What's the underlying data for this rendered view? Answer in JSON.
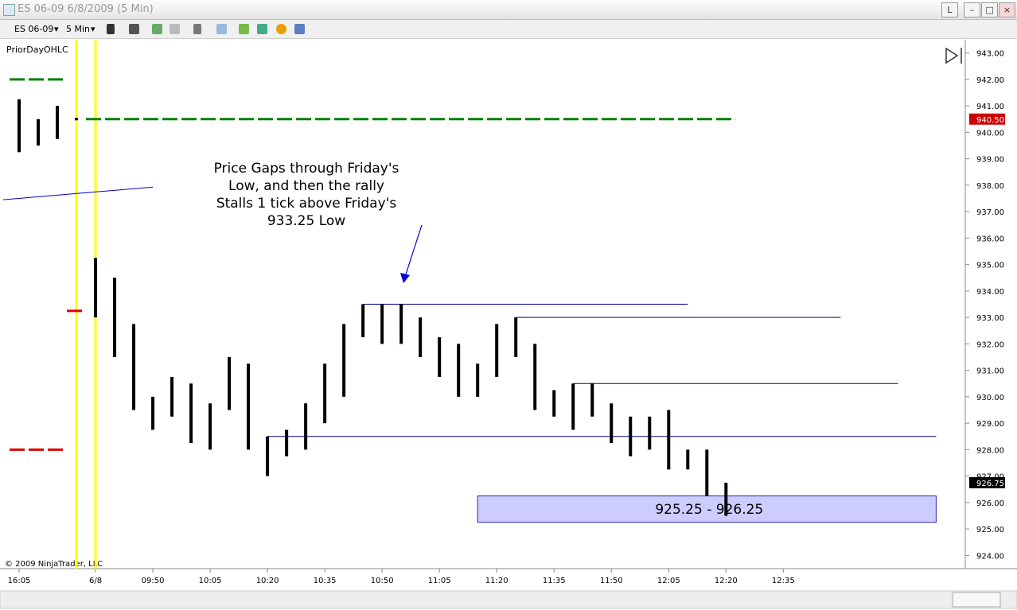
{
  "window": {
    "title": "ES 06-09  6/8/2009 (5 Min)",
    "button": "L"
  },
  "toolbar": {
    "instrument": "ES 06-09",
    "interval": "5 Min"
  },
  "chart_data": {
    "type": "ohlc",
    "indicator": "PriorDayOHLC",
    "copyright": "© 2009 NinjaTrader, LLC",
    "annotation": [
      "Price Gaps through Friday's",
      "Low, and then the rally",
      "Stalls 1 tick above Friday's",
      "933.25 Low"
    ],
    "color": "#000000",
    "high": [
      941.25,
      940.5,
      941,
      940.5,
      935.25,
      934.5,
      932.75,
      930,
      930.75,
      930.5,
      929.75,
      931.5,
      931.25,
      928.5,
      928.75,
      929.75,
      931.25,
      932.75,
      933.5,
      933.5,
      933.5,
      933,
      932.25,
      932,
      931.25,
      932.75,
      933,
      932,
      930.25,
      930.5,
      930.5,
      929.75,
      929.25,
      929.25,
      929.5,
      928,
      928,
      926.75
    ],
    "low": [
      939.25,
      939.5,
      939.75,
      940.5,
      933,
      931.5,
      929.5,
      928.75,
      929.25,
      928.25,
      928,
      929.5,
      928,
      927,
      927.75,
      928,
      929,
      930,
      932.25,
      932,
      932,
      931.5,
      930.75,
      930,
      930,
      930.75,
      931.5,
      929.5,
      929.25,
      928.75,
      929.25,
      928.25,
      927.75,
      928,
      927.25,
      927.25,
      926.25,
      925.5
    ],
    "xlim": [
      -1,
      49.4
    ],
    "xticks": [
      {
        "value": 0,
        "label": "16:05"
      },
      {
        "value": 4,
        "label": "6/8"
      },
      {
        "value": 7,
        "label": "09:50"
      },
      {
        "value": 10,
        "label": "10:05"
      },
      {
        "value": 13,
        "label": "10:20"
      },
      {
        "value": 16,
        "label": "10:35"
      },
      {
        "value": 19,
        "label": "10:50"
      },
      {
        "value": 22,
        "label": "11:05"
      },
      {
        "value": 25,
        "label": "11:20"
      },
      {
        "value": 28,
        "label": "11:35"
      },
      {
        "value": 31,
        "label": "11:50"
      },
      {
        "value": 34,
        "label": "12:05"
      },
      {
        "value": 37,
        "label": "12:20"
      },
      {
        "value": 40,
        "label": "12:35"
      }
    ],
    "ylim": [
      923.5,
      943.5
    ],
    "yticks": [
      {
        "value": 924,
        "label": "924.00"
      },
      {
        "value": 925,
        "label": "925.00"
      },
      {
        "value": 926,
        "label": "926.00"
      },
      {
        "value": 927,
        "label": "927.00"
      },
      {
        "value": 928,
        "label": "928.00"
      },
      {
        "value": 929,
        "label": "929.00"
      },
      {
        "value": 930,
        "label": "930.00"
      },
      {
        "value": 931,
        "label": "931.00"
      },
      {
        "value": 932,
        "label": "932.00"
      },
      {
        "value": 933,
        "label": "933.00"
      },
      {
        "value": 934,
        "label": "934.00"
      },
      {
        "value": 935,
        "label": "935.00"
      },
      {
        "value": 936,
        "label": "936.00"
      },
      {
        "value": 937,
        "label": "937.00"
      },
      {
        "value": 938,
        "label": "938.00"
      },
      {
        "value": 939,
        "label": "939.00"
      },
      {
        "value": 940,
        "label": "940.00"
      },
      {
        "value": 941,
        "label": "941.00"
      },
      {
        "value": 942,
        "label": "942.00"
      },
      {
        "value": 943,
        "label": "943.00"
      }
    ],
    "price_markers": [
      {
        "value": 940.5,
        "label": "940.50",
        "color": "#cc0000"
      },
      {
        "value": 926.75,
        "label": "926.75",
        "color": "#000000"
      }
    ],
    "levels": [
      {
        "value": 942,
        "from": -0.5,
        "to": 2.5,
        "color": "#008000",
        "dashed": true
      },
      {
        "value": 940.5,
        "from": 3.5,
        "to": 37.5,
        "color": "#008000",
        "dashed": true
      },
      {
        "value": 933.25,
        "from": 2.5,
        "to": 3.5,
        "color": "#dd0000",
        "dashed": true
      },
      {
        "value": 928,
        "from": -0.5,
        "to": 2.5,
        "color": "#dd0000",
        "dashed": true
      },
      {
        "value": 933.5,
        "from": 18,
        "to": 35,
        "color": "#000080",
        "dashed": false
      },
      {
        "value": 933,
        "from": 26,
        "to": 43,
        "color": "#000080",
        "dashed": false
      },
      {
        "value": 930.5,
        "from": 29,
        "to": 46,
        "color": "#000080",
        "dashed": false
      },
      {
        "value": 928.5,
        "from": 13,
        "to": 48,
        "color": "#000080",
        "dashed": false
      }
    ],
    "trendline": {
      "x": [
        -0.83,
        7
      ],
      "y": [
        937.45,
        937.93
      ],
      "color": "#0000cc"
    },
    "zone": {
      "low": 925.25,
      "high": 926.25,
      "from": 24,
      "to": 48,
      "label": "925.25 - 926.25",
      "color": "#ccccff"
    },
    "session_lines": [
      3,
      4
    ]
  }
}
